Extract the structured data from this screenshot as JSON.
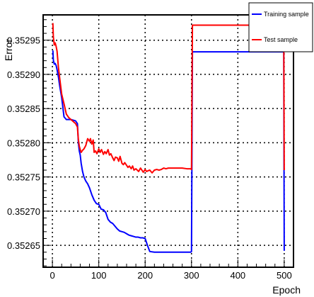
{
  "chart_data": {
    "type": "line",
    "title": "",
    "xlabel": "Epoch",
    "ylabel": "Error",
    "xlim": [
      -20,
      520
    ],
    "ylim": [
      0.352618,
      0.352987
    ],
    "grid": true,
    "legend_position": "top-right",
    "x_ticks": [
      0,
      100,
      200,
      300,
      400,
      500
    ],
    "x_tick_labels": [
      "0",
      "100",
      "200",
      "300",
      "400",
      "500"
    ],
    "y_ticks": [
      0.35265,
      0.3527,
      0.35275,
      0.3528,
      0.35285,
      0.3529,
      0.35295
    ],
    "y_tick_labels": [
      "0.35265",
      "0.35270",
      "0.35275",
      "0.35280",
      "0.35285",
      "0.35290",
      "0.35295"
    ],
    "series": [
      {
        "name": "Training sample",
        "color": "#0000ff",
        "x": [
          1,
          2,
          4,
          6,
          8,
          10,
          13,
          16,
          20,
          25,
          30,
          35,
          40,
          45,
          50,
          54,
          56,
          58,
          60,
          62,
          65,
          68,
          72,
          76,
          80,
          85,
          90,
          95,
          100,
          105,
          110,
          115,
          120,
          125,
          130,
          135,
          140,
          145,
          150,
          155,
          160,
          165,
          170,
          175,
          180,
          185,
          190,
          195,
          200,
          205,
          210,
          220,
          230,
          240,
          250,
          260,
          270,
          280,
          290,
          298,
          300,
          302,
          350,
          400,
          450,
          499,
          500
        ],
        "y": [
          0.352935,
          0.352921,
          0.352915,
          0.352916,
          0.352913,
          0.352907,
          0.352896,
          0.352882,
          0.352866,
          0.352838,
          0.352834,
          0.352834,
          0.352834,
          0.352833,
          0.352832,
          0.352828,
          0.3528,
          0.352788,
          0.352782,
          0.35277,
          0.352758,
          0.35275,
          0.352744,
          0.35274,
          0.352734,
          0.352724,
          0.352716,
          0.352711,
          0.35271,
          0.352703,
          0.352702,
          0.352698,
          0.352688,
          0.352684,
          0.352682,
          0.352678,
          0.352674,
          0.352671,
          0.35267,
          0.352669,
          0.352667,
          0.352665,
          0.352664,
          0.352663,
          0.352662,
          0.352662,
          0.352661,
          0.352661,
          0.35266,
          0.35265,
          0.352641,
          0.35264,
          0.35264,
          0.35264,
          0.35264,
          0.35264,
          0.35264,
          0.35264,
          0.35264,
          0.35264,
          0.352641,
          0.352933,
          0.352933,
          0.352933,
          0.352933,
          0.352933,
          0.352642
        ]
      },
      {
        "name": "Test sample",
        "color": "#ff0000",
        "x": [
          1,
          2,
          4,
          6,
          8,
          10,
          13,
          16,
          20,
          25,
          30,
          35,
          40,
          45,
          50,
          54,
          55,
          56,
          58,
          60,
          62,
          65,
          68,
          72,
          76,
          80,
          82,
          85,
          88,
          90,
          93,
          96,
          100,
          103,
          106,
          110,
          113,
          116,
          120,
          123,
          126,
          130,
          133,
          136,
          140,
          143,
          146,
          150,
          153,
          156,
          160,
          163,
          166,
          170,
          173,
          176,
          180,
          183,
          186,
          190,
          193,
          196,
          200,
          203,
          206,
          210,
          215,
          220,
          225,
          230,
          235,
          240,
          245,
          250,
          260,
          270,
          280,
          290,
          298,
          300,
          302,
          350,
          400,
          450,
          499,
          500
        ],
        "y": [
          0.352975,
          0.352955,
          0.352943,
          0.352946,
          0.352941,
          0.352934,
          0.35291,
          0.352893,
          0.352871,
          0.352857,
          0.352842,
          0.352837,
          0.352834,
          0.352831,
          0.352828,
          0.352823,
          0.352813,
          0.352805,
          0.352795,
          0.35279,
          0.352786,
          0.352789,
          0.352791,
          0.352796,
          0.352806,
          0.352802,
          0.352806,
          0.352798,
          0.352804,
          0.352786,
          0.352788,
          0.352784,
          0.352791,
          0.352786,
          0.35279,
          0.352783,
          0.352787,
          0.352784,
          0.35279,
          0.352782,
          0.352784,
          0.352778,
          0.352774,
          0.352779,
          0.352778,
          0.352773,
          0.35278,
          0.35277,
          0.352768,
          0.352771,
          0.352767,
          0.352764,
          0.352766,
          0.352762,
          0.352766,
          0.35276,
          0.352762,
          0.35276,
          0.352758,
          0.352763,
          0.35276,
          0.352757,
          0.352761,
          0.352758,
          0.352759,
          0.35276,
          0.352756,
          0.35276,
          0.352761,
          0.35276,
          0.352761,
          0.352763,
          0.352762,
          0.352763,
          0.352763,
          0.352763,
          0.352763,
          0.352762,
          0.352762,
          0.352761,
          0.352972,
          0.352972,
          0.352972,
          0.352972,
          0.352972,
          0.35276
        ]
      }
    ]
  }
}
